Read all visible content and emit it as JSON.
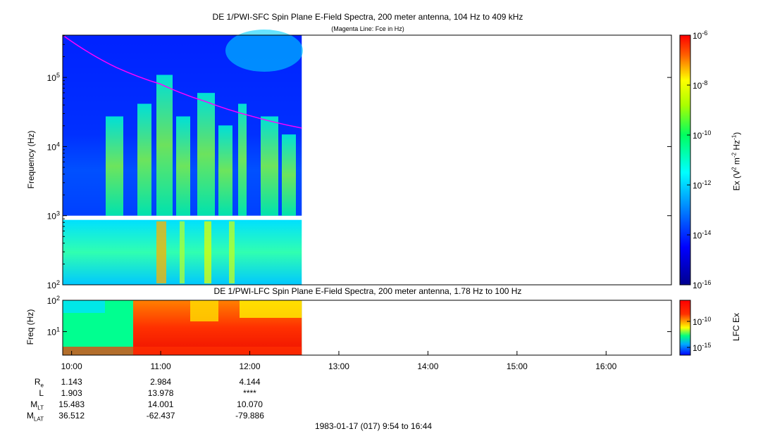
{
  "chart_data": [
    {
      "type": "heatmap",
      "title": "DE 1/PWI-SFC  Spin Plane E-Field Spectra, 200 meter antenna, 104 Hz to 409 kHz",
      "subtitle": "(Magenta Line: Fce in Hz)",
      "ylabel": "Frequency (Hz)",
      "y_scale": "log",
      "ylim": [
        100,
        409000
      ],
      "y_ticks": [
        {
          "value": 100,
          "base": "10",
          "exp": "2"
        },
        {
          "value": 1000,
          "base": "10",
          "exp": "3"
        },
        {
          "value": 10000,
          "base": "10",
          "exp": "4"
        },
        {
          "value": 100000,
          "base": "10",
          "exp": "5"
        }
      ],
      "x_data_range": [
        "09:54",
        "12:35"
      ],
      "colorbar": {
        "label_parts": [
          "Ex (V",
          "2",
          " m",
          "-2",
          " Hz",
          "-1",
          ")"
        ],
        "scale": "log",
        "range": [
          1e-16,
          1e-06
        ],
        "ticks": [
          {
            "base": "10",
            "exp": "-6"
          },
          {
            "base": "10",
            "exp": "-8"
          },
          {
            "base": "10",
            "exp": "-10"
          },
          {
            "base": "10",
            "exp": "-12"
          },
          {
            "base": "10",
            "exp": "-14"
          },
          {
            "base": "10",
            "exp": "-16"
          }
        ]
      },
      "overlay_line": {
        "label": "Fce",
        "color": "#ff00ff",
        "points": [
          [
            "09:54",
            409000
          ],
          [
            "10:30",
            140000
          ],
          [
            "11:00",
            80000
          ],
          [
            "11:30",
            45000
          ],
          [
            "12:00",
            28000
          ],
          [
            "12:35",
            18500
          ]
        ]
      }
    },
    {
      "type": "heatmap",
      "title": "DE 1/PWI-LFC  Spin Plane E-Field Spectra, 200 meter antenna, 1.78 Hz to 100 Hz",
      "ylabel": "Freq (Hz)",
      "y_scale": "log",
      "ylim": [
        1.78,
        100
      ],
      "y_ticks": [
        {
          "value": 10,
          "base": "10",
          "exp": "1"
        },
        {
          "value": 100,
          "base": "10",
          "exp": "2"
        }
      ],
      "x_data_range": [
        "09:54",
        "12:35"
      ],
      "colorbar": {
        "label": "LFC Ex",
        "scale": "log",
        "ticks": [
          {
            "base": "10",
            "exp": "-10"
          },
          {
            "base": "10",
            "exp": "-15"
          }
        ]
      }
    }
  ],
  "time_axis": {
    "range": [
      "09:54",
      "16:44"
    ],
    "ticks": [
      "10:00",
      "11:00",
      "12:00",
      "13:00",
      "14:00",
      "15:00",
      "16:00"
    ]
  },
  "ephemeris": {
    "rows": [
      {
        "name": "R",
        "sub": "e",
        "values": [
          "1.143",
          "2.984",
          "4.144"
        ]
      },
      {
        "name": "L",
        "sub": "",
        "values": [
          "1.903",
          "13.978",
          "****"
        ]
      },
      {
        "name": "M",
        "sub": "LT",
        "values": [
          "15.483",
          "14.001",
          "10.070"
        ]
      },
      {
        "name": "M",
        "sub": "LAT",
        "values": [
          "36.512",
          "-62.437",
          "-79.886"
        ]
      }
    ]
  },
  "footer": "1983-01-17 (017) 9:54 to 16:44"
}
